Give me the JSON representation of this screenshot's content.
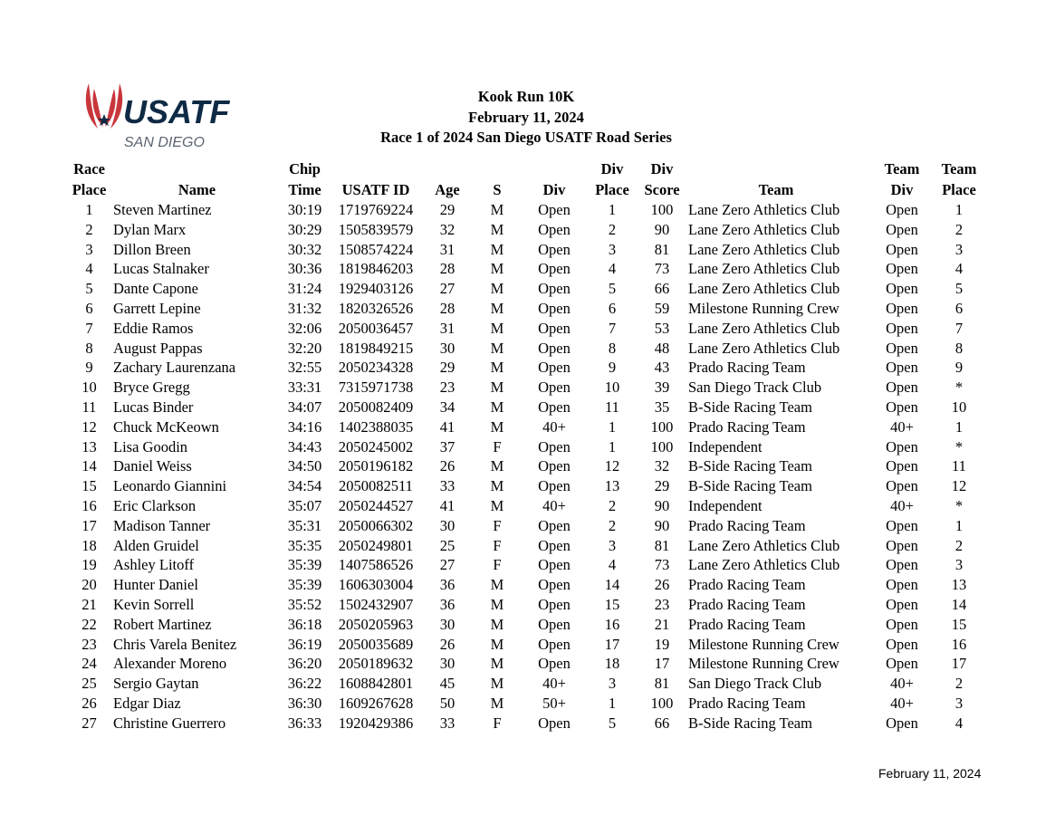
{
  "logo": {
    "text": "USATF",
    "subtext": "SAN DIEGO",
    "colors": {
      "red": "#c8363b",
      "navy": "#0f2a44",
      "gray": "#5a6470"
    }
  },
  "header": {
    "title": "Kook Run 10K",
    "date": "February 11, 2024",
    "subtitle": "Race 1 of 2024 San Diego USATF Road Series"
  },
  "table": {
    "columns_line1": [
      "Race",
      "",
      "Chip",
      "",
      "",
      "",
      "",
      "Div",
      "Div",
      "",
      "Team",
      "Team"
    ],
    "columns_line2": [
      "Place",
      "Name",
      "Time",
      "USATF  ID",
      "Age",
      "S",
      "Div",
      "Place",
      "Score",
      "Team",
      "Div",
      "Place"
    ],
    "rows": [
      [
        "1",
        "Steven Martinez",
        "30:19",
        "1719769224",
        "29",
        "M",
        "Open",
        "1",
        "100",
        "Lane Zero Athletics Club",
        "Open",
        "1"
      ],
      [
        "2",
        "Dylan Marx",
        "30:29",
        "1505839579",
        "32",
        "M",
        "Open",
        "2",
        "90",
        "Lane Zero Athletics Club",
        "Open",
        "2"
      ],
      [
        "3",
        "Dillon Breen",
        "30:32",
        "1508574224",
        "31",
        "M",
        "Open",
        "3",
        "81",
        "Lane Zero Athletics Club",
        "Open",
        "3"
      ],
      [
        "4",
        "Lucas Stalnaker",
        "30:36",
        "1819846203",
        "28",
        "M",
        "Open",
        "4",
        "73",
        "Lane Zero Athletics Club",
        "Open",
        "4"
      ],
      [
        "5",
        "Dante Capone",
        "31:24",
        "1929403126",
        "27",
        "M",
        "Open",
        "5",
        "66",
        "Lane Zero Athletics Club",
        "Open",
        "5"
      ],
      [
        "6",
        "Garrett Lepine",
        "31:32",
        "1820326526",
        "28",
        "M",
        "Open",
        "6",
        "59",
        "Milestone Running Crew",
        "Open",
        "6"
      ],
      [
        "7",
        "Eddie Ramos",
        "32:06",
        "2050036457",
        "31",
        "M",
        "Open",
        "7",
        "53",
        "Lane Zero Athletics Club",
        "Open",
        "7"
      ],
      [
        "8",
        "August Pappas",
        "32:20",
        "1819849215",
        "30",
        "M",
        "Open",
        "8",
        "48",
        "Lane Zero Athletics Club",
        "Open",
        "8"
      ],
      [
        "9",
        "Zachary Laurenzana",
        "32:55",
        "2050234328",
        "29",
        "M",
        "Open",
        "9",
        "43",
        "Prado Racing Team",
        "Open",
        "9"
      ],
      [
        "10",
        "Bryce Gregg",
        "33:31",
        "7315971738",
        "23",
        "M",
        "Open",
        "10",
        "39",
        "San Diego Track Club",
        "Open",
        "*"
      ],
      [
        "11",
        "Lucas Binder",
        "34:07",
        "2050082409",
        "34",
        "M",
        "Open",
        "11",
        "35",
        "B-Side Racing Team",
        "Open",
        "10"
      ],
      [
        "12",
        "Chuck McKeown",
        "34:16",
        "1402388035",
        "41",
        "M",
        "40+",
        "1",
        "100",
        "Prado Racing Team",
        "40+",
        "1"
      ],
      [
        "13",
        "Lisa Goodin",
        "34:43",
        "2050245002",
        "37",
        "F",
        "Open",
        "1",
        "100",
        "Independent",
        "Open",
        "*"
      ],
      [
        "14",
        "Daniel Weiss",
        "34:50",
        "2050196182",
        "26",
        "M",
        "Open",
        "12",
        "32",
        "B-Side Racing Team",
        "Open",
        "11"
      ],
      [
        "15",
        "Leonardo Giannini",
        "34:54",
        "2050082511",
        "33",
        "M",
        "Open",
        "13",
        "29",
        "B-Side Racing Team",
        "Open",
        "12"
      ],
      [
        "16",
        "Eric Clarkson",
        "35:07",
        "2050244527",
        "41",
        "M",
        "40+",
        "2",
        "90",
        "Independent",
        "40+",
        "*"
      ],
      [
        "17",
        "Madison Tanner",
        "35:31",
        "2050066302",
        "30",
        "F",
        "Open",
        "2",
        "90",
        "Prado Racing Team",
        "Open",
        "1"
      ],
      [
        "18",
        "Alden Gruidel",
        "35:35",
        "2050249801",
        "25",
        "F",
        "Open",
        "3",
        "81",
        "Lane Zero Athletics Club",
        "Open",
        "2"
      ],
      [
        "19",
        "Ashley Litoff",
        "35:39",
        "1407586526",
        "27",
        "F",
        "Open",
        "4",
        "73",
        "Lane Zero Athletics Club",
        "Open",
        "3"
      ],
      [
        "20",
        "Hunter Daniel",
        "35:39",
        "1606303004",
        "36",
        "M",
        "Open",
        "14",
        "26",
        "Prado Racing Team",
        "Open",
        "13"
      ],
      [
        "21",
        "Kevin Sorrell",
        "35:52",
        "1502432907",
        "36",
        "M",
        "Open",
        "15",
        "23",
        "Prado Racing Team",
        "Open",
        "14"
      ],
      [
        "22",
        "Robert Martinez",
        "36:18",
        "2050205963",
        "30",
        "M",
        "Open",
        "16",
        "21",
        "Prado Racing Team",
        "Open",
        "15"
      ],
      [
        "23",
        "Chris Varela Benitez",
        "36:19",
        "2050035689",
        "26",
        "M",
        "Open",
        "17",
        "19",
        "Milestone Running Crew",
        "Open",
        "16"
      ],
      [
        "24",
        "Alexander Moreno",
        "36:20",
        "2050189632",
        "30",
        "M",
        "Open",
        "18",
        "17",
        "Milestone Running Crew",
        "Open",
        "17"
      ],
      [
        "25",
        "Sergio Gaytan",
        "36:22",
        "1608842801",
        "45",
        "M",
        "40+",
        "3",
        "81",
        "San Diego Track Club",
        "40+",
        "2"
      ],
      [
        "26",
        "Edgar Diaz",
        "36:30",
        "1609267628",
        "50",
        "M",
        "50+",
        "1",
        "100",
        "Prado Racing Team",
        "40+",
        "3"
      ],
      [
        "27",
        "Christine Guerrero",
        "36:33",
        "1920429386",
        "33",
        "F",
        "Open",
        "5",
        "66",
        "B-Side Racing Team",
        "Open",
        "4"
      ]
    ]
  },
  "footer": {
    "date": "February 11, 2024"
  }
}
